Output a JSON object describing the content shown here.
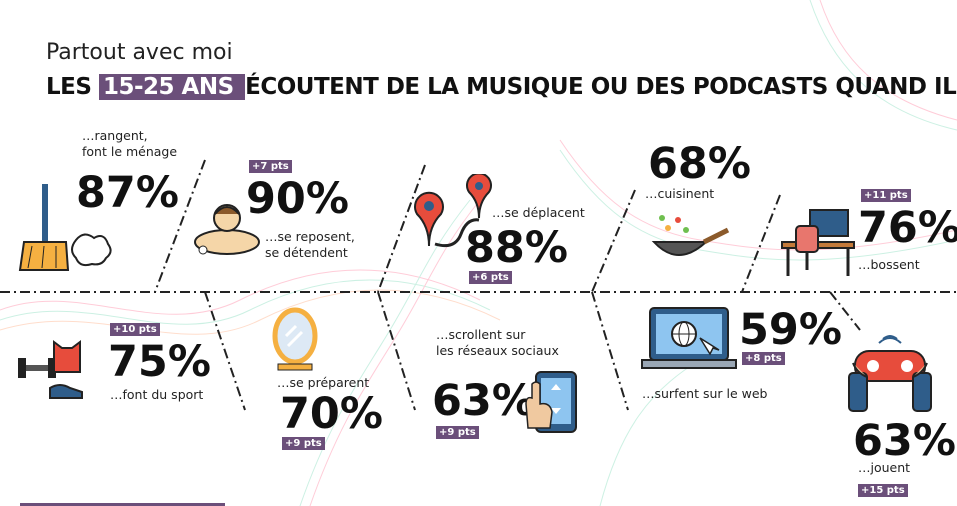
{
  "header": {
    "subtitle": "Partout avec moi",
    "title_pre": "LES ",
    "title_highlight": "15-25 ANS ",
    "title_post": "ÉCOUTENT DE LA MUSIQUE OU DES PODCASTS QUAND ILS…"
  },
  "colors": {
    "accent": "#6b4f7a",
    "orange": "#f5b041",
    "teal": "#2f5d8a",
    "red": "#e74c3c"
  },
  "activities": [
    {
      "id": "menage",
      "percent": "87%",
      "label": "…rangent,\nfont le ménage",
      "badge": "",
      "icon": "broom-icon"
    },
    {
      "id": "repos",
      "percent": "90%",
      "label": "…se reposent,\nse détendent",
      "badge": "+7 pts",
      "icon": "relax-icon"
    },
    {
      "id": "deplacent",
      "percent": "88%",
      "label": "…se déplacent",
      "badge": "+6 pts",
      "icon": "map-pins-icon"
    },
    {
      "id": "cuisinent",
      "percent": "68%",
      "label": "…cuisinent",
      "badge": "",
      "icon": "wok-icon"
    },
    {
      "id": "bossent",
      "percent": "76%",
      "label": "…bossent",
      "badge": "+11 pts",
      "icon": "desk-icon"
    },
    {
      "id": "sport",
      "percent": "75%",
      "label": "…font du sport",
      "badge": "+10 pts",
      "icon": "sport-icon"
    },
    {
      "id": "preparent",
      "percent": "70%",
      "label": "…se préparent",
      "badge": "+9 pts",
      "icon": "mirror-icon"
    },
    {
      "id": "scrollent",
      "percent": "63%",
      "label": "…scrollent sur\nles réseaux sociaux",
      "badge": "+9 pts",
      "icon": "phone-scroll-icon"
    },
    {
      "id": "surfent",
      "percent": "59%",
      "label": "…surfent sur le web",
      "badge": "+8 pts",
      "icon": "laptop-globe-icon"
    },
    {
      "id": "jouent",
      "percent": "63%",
      "label": "…jouent",
      "badge": "+15 pts",
      "icon": "gamepad-icon"
    }
  ]
}
